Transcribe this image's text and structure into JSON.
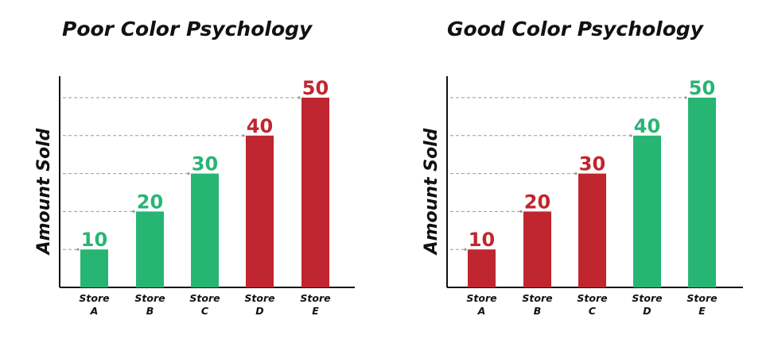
{
  "colors": {
    "green": "#27b574",
    "red": "#c0262f",
    "axis": "#111111",
    "gridline": "#9a9a9a",
    "text": "#111111"
  },
  "chart_data": [
    {
      "type": "bar",
      "title": "Poor Color Psychology",
      "ylabel": "Amount Sold",
      "xlabel": "",
      "categories": [
        [
          "Store",
          "A"
        ],
        [
          "Store",
          "B"
        ],
        [
          "Store",
          "C"
        ],
        [
          "Store",
          "D"
        ],
        [
          "Store",
          "E"
        ]
      ],
      "values": [
        10,
        20,
        30,
        40,
        50
      ],
      "bar_colors": [
        "green",
        "green",
        "green",
        "red",
        "red"
      ],
      "ylim": [
        0,
        55
      ],
      "gridlines": [
        10,
        20,
        30,
        40,
        50
      ],
      "grid": "dashed, from axis to each bar top",
      "legend": "none"
    },
    {
      "type": "bar",
      "title": "Good Color Psychology",
      "ylabel": "Amount Sold",
      "xlabel": "",
      "categories": [
        [
          "Store",
          "A"
        ],
        [
          "Store",
          "B"
        ],
        [
          "Store",
          "C"
        ],
        [
          "Store",
          "D"
        ],
        [
          "Store",
          "E"
        ]
      ],
      "values": [
        10,
        20,
        30,
        40,
        50
      ],
      "bar_colors": [
        "red",
        "red",
        "red",
        "green",
        "green"
      ],
      "ylim": [
        0,
        55
      ],
      "gridlines": [
        10,
        20,
        30,
        40,
        50
      ],
      "grid": "dashed, from axis to each bar top",
      "legend": "none"
    }
  ]
}
